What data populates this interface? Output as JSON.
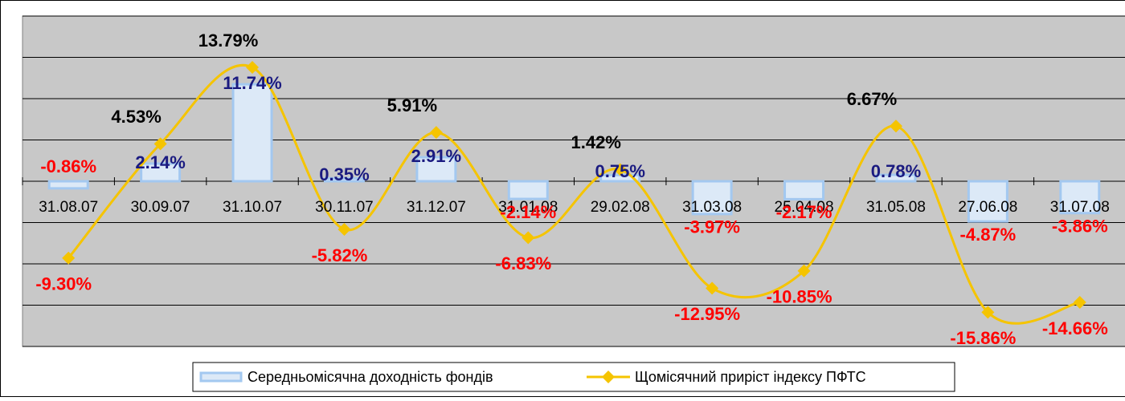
{
  "chart_data": {
    "type": "bar_line",
    "categories": [
      "31.08.07",
      "30.09.07",
      "31.10.07",
      "30.11.07",
      "31.12.07",
      "31.01.08",
      "29.02.08",
      "31.03.08",
      "25.04.08",
      "31.05.08",
      "27.06.08",
      "31.07.08"
    ],
    "series": [
      {
        "name": "Середньомісячна доходність фондів",
        "type": "bar",
        "color": "#dce9f7",
        "border": "#a3c8f0",
        "values": [
          -0.86,
          2.14,
          11.74,
          0.35,
          2.91,
          -2.14,
          0.75,
          -3.97,
          -2.17,
          0.78,
          -4.87,
          -3.86
        ],
        "value_labels": [
          "-0.86%",
          "2.14%",
          "11.74%",
          "0.35%",
          "2.91%",
          "-2.14%",
          "0.75%",
          "-3.97%",
          "-2.17%",
          "0.78%",
          "-4.87%",
          "-3.86%"
        ]
      },
      {
        "name": "Щомісячний приріст індексу ПФТС",
        "type": "line",
        "color": "#f5c400",
        "values": [
          -9.3,
          4.53,
          13.79,
          -5.82,
          5.91,
          -6.83,
          1.42,
          -12.95,
          -10.85,
          6.67,
          -15.86,
          -14.66
        ],
        "value_labels": [
          "-9.30%",
          "4.53%",
          "13.79%",
          "-5.82%",
          "5.91%",
          "-6.83%",
          "1.42%",
          "-12.95%",
          "-10.85%",
          "6.67%",
          "-15.86%",
          "-14.66%"
        ]
      }
    ],
    "ylim": [
      -20,
      20
    ],
    "yticks": [
      -20,
      -15,
      -10,
      -5,
      0,
      5,
      10,
      15,
      20
    ],
    "grid": true
  }
}
